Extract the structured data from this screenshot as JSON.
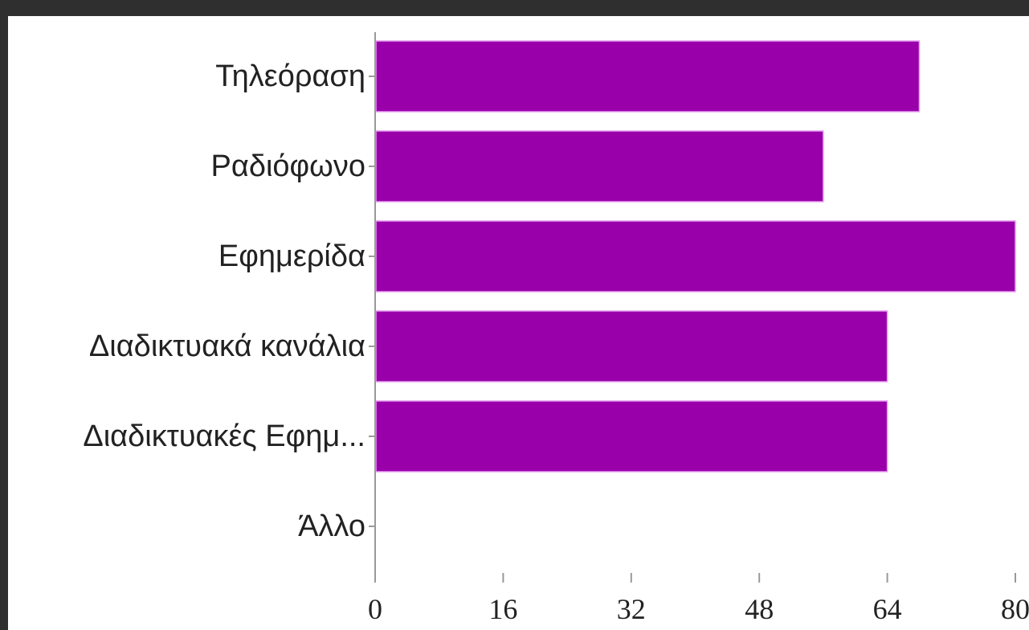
{
  "chart_data": {
    "type": "bar",
    "orientation": "horizontal",
    "categories": [
      "Τηλεόραση",
      "Ραδιόφωνο",
      "Εφημερίδα",
      "Διαδικτυακά κανάλια",
      "Διαδικτυακές Εφημ...",
      "Άλλο"
    ],
    "values": [
      68,
      56,
      80,
      64,
      64,
      0
    ],
    "xlim": [
      0,
      80
    ],
    "xticks": [
      "0",
      "16",
      "32",
      "48",
      "64",
      "80"
    ],
    "grid": false,
    "colors": {
      "bar": "#9900aa",
      "bar_edge": "#e69df0",
      "axis": "#999999",
      "background": "#ffffff",
      "frame": "#2f2f2f"
    }
  }
}
